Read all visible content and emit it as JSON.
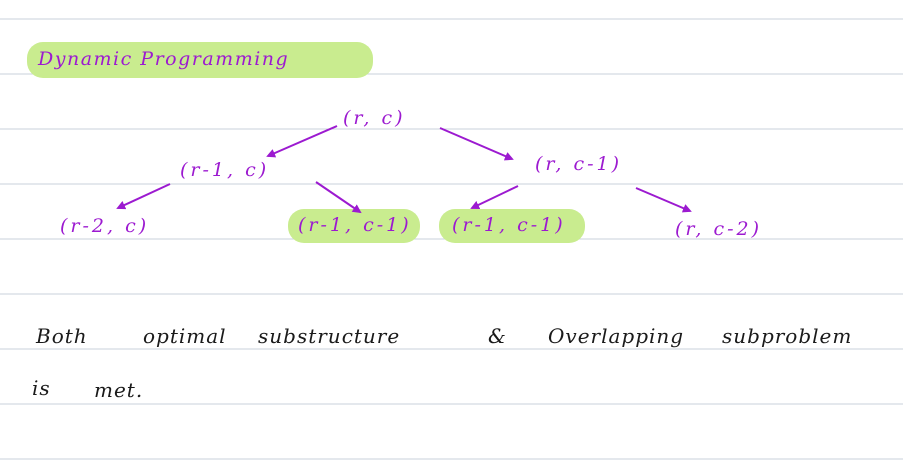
{
  "title": "Dynamic Programming",
  "tree": {
    "root": "(r, c)",
    "left": "(r-1, c)",
    "right": "(r, c-1)",
    "left_left": "(r-2, c)",
    "left_right": "(r-1, c-1)",
    "right_left": "(r-1, c-1)",
    "right_right": "(r, c-2)"
  },
  "note": {
    "word1": "Both",
    "word2": "optimal",
    "word3": "substructure",
    "word4": "&",
    "word5": "Overlapping",
    "word6": "subproblem",
    "line2_word1": "is",
    "line2_word2": "met."
  },
  "colors": {
    "ink_purple": "#9c1ad0",
    "highlight": "#c9ec8f",
    "ink_black": "#1a1a1a",
    "rule_line": "#c8d2db"
  }
}
